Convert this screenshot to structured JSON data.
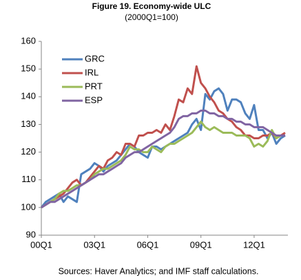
{
  "chart_data": {
    "type": "line",
    "title": "Figure 19. Economy-wide ULC",
    "subtitle": "(2000Q1=100)",
    "source": "Sources: Haver Analytics; and IMF staff calculations.",
    "categories": [
      "00Q1",
      null,
      null,
      null,
      null,
      null,
      null,
      null,
      null,
      null,
      null,
      null,
      "03Q1",
      null,
      null,
      null,
      null,
      null,
      null,
      null,
      null,
      null,
      null,
      null,
      "06Q1",
      null,
      null,
      null,
      null,
      null,
      null,
      null,
      null,
      null,
      null,
      null,
      "09Q1",
      null,
      null,
      null,
      null,
      null,
      null,
      null,
      null,
      null,
      null,
      null,
      "12Q1",
      null,
      null,
      null,
      null,
      null,
      null,
      null
    ],
    "ylim": [
      90,
      160
    ],
    "yticks": [
      90,
      100,
      110,
      120,
      130,
      140,
      150,
      160
    ],
    "grid": false,
    "legend": "upper-left",
    "series": [
      {
        "name": "GRC",
        "color": "#4f81bd",
        "values": [
          100,
          102,
          103,
          104,
          105,
          102,
          104,
          103,
          102,
          112,
          113,
          114,
          116,
          115,
          113,
          115,
          116,
          117,
          119,
          121,
          123,
          122,
          120,
          119,
          118,
          122,
          122,
          121,
          122,
          123,
          124,
          125,
          126,
          127,
          130,
          132,
          128,
          141,
          139,
          142,
          143,
          141,
          135,
          139,
          139,
          138,
          134,
          132,
          137,
          128,
          128,
          125,
          127,
          123,
          125,
          126
        ]
      },
      {
        "name": "IRL",
        "color": "#c0504d",
        "values": [
          100,
          101,
          102,
          103,
          104,
          105,
          107,
          109,
          110,
          108,
          109,
          111,
          113,
          115,
          114,
          117,
          118,
          120,
          119,
          123,
          123,
          122,
          126,
          126,
          127,
          127,
          128,
          127,
          130,
          128,
          133,
          139,
          138,
          143,
          141,
          151,
          145,
          143,
          140,
          138,
          135,
          134,
          132,
          131,
          129,
          128,
          126,
          126,
          125,
          125,
          126,
          126,
          127,
          125,
          126,
          127
        ]
      },
      {
        "name": "PRT",
        "color": "#9bbb59",
        "values": [
          100,
          101,
          102,
          103,
          105,
          106,
          106,
          107,
          108,
          108,
          109,
          110,
          112,
          113,
          114,
          114,
          115,
          116,
          117,
          119,
          122,
          121,
          121,
          120,
          120,
          122,
          121,
          120,
          122,
          123,
          123,
          124,
          125,
          126,
          127,
          129,
          131,
          129,
          128,
          129,
          128,
          127,
          127,
          127,
          126,
          126,
          126,
          125,
          122,
          123,
          122,
          124,
          128,
          125,
          126,
          126
        ]
      },
      {
        "name": "ESP",
        "color": "#8064a2",
        "values": [
          100,
          101,
          102,
          102,
          103,
          104,
          105,
          106,
          107,
          108,
          109,
          110,
          111,
          112,
          112,
          113,
          114,
          115,
          116,
          118,
          119,
          120,
          120,
          121,
          122,
          123,
          124,
          125,
          126,
          127,
          129,
          132,
          133,
          133,
          134,
          134,
          135,
          135,
          134,
          134,
          133,
          133,
          132,
          132,
          131,
          131,
          130,
          130,
          129,
          129,
          129,
          128,
          127,
          126,
          126,
          126
        ]
      }
    ]
  }
}
